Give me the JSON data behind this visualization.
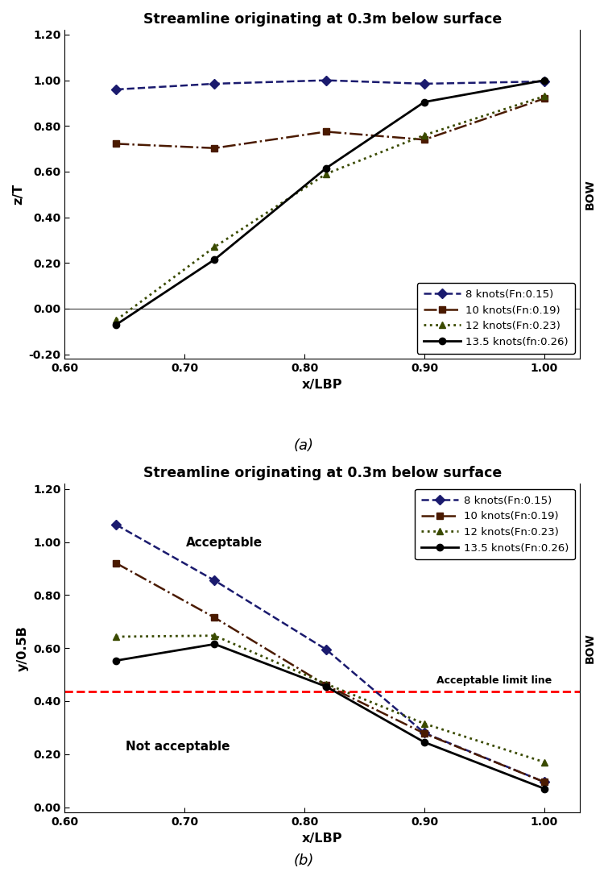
{
  "title_a": "Streamline originating at 0.3m below surface",
  "title_b": "Streamline originating at 0.3m below surface",
  "xlabel": "x/LBP",
  "ylabel_a": "z/T",
  "ylabel_b": "y/0.5B",
  "label_a": "(a)",
  "label_b": "(b)",
  "x_values": [
    0.643,
    0.725,
    0.818,
    0.9,
    1.0
  ],
  "plot_a_8": [
    0.96,
    0.985,
    1.0,
    0.985,
    0.995
  ],
  "plot_a_10": [
    0.722,
    0.703,
    0.775,
    0.74,
    0.92
  ],
  "plot_a_12": [
    -0.05,
    0.27,
    0.59,
    0.76,
    0.93
  ],
  "plot_a_13": [
    -0.07,
    0.215,
    0.615,
    0.905,
    1.0
  ],
  "plot_b_8": [
    1.065,
    0.855,
    0.595,
    0.28,
    0.095
  ],
  "plot_b_10": [
    0.92,
    0.715,
    0.46,
    0.278,
    0.095
  ],
  "plot_b_12": [
    0.643,
    0.647,
    0.465,
    0.315,
    0.17
  ],
  "plot_b_13": [
    0.553,
    0.615,
    0.455,
    0.245,
    0.07
  ],
  "color_8": "#1a1a6e",
  "color_10": "#4a1a00",
  "color_12": "#3a4a00",
  "color_13": "#000000",
  "acceptable_limit": 0.435,
  "legend_a": [
    "8 knots(Fn:0.15)",
    "10 knots(Fn:0.19)",
    "12 knots(Fn:0.23)",
    "13.5 knots(fn:0.26)"
  ],
  "legend_b": [
    "8 knots(Fn:0.15)",
    "10 knots(Fn:0.19)",
    "12 knots(Fn:0.23)",
    "13.5 knots(Fn:0.26)"
  ],
  "xlim": [
    0.6,
    1.03
  ],
  "ylim_a": [
    -0.22,
    1.22
  ],
  "ylim_b": [
    -0.02,
    1.22
  ],
  "xticks": [
    0.6,
    0.7,
    0.8,
    0.9,
    1.0
  ],
  "yticks_a": [
    -0.2,
    0.0,
    0.2,
    0.4,
    0.6,
    0.8,
    1.0,
    1.2
  ],
  "yticks_b": [
    0.0,
    0.2,
    0.4,
    0.6,
    0.8,
    1.0,
    1.2
  ],
  "text_acceptable": "Acceptable",
  "text_not_acceptable": "Not acceptable",
  "acceptable_label": "Acceptable limit line",
  "bow_label": "BOW"
}
